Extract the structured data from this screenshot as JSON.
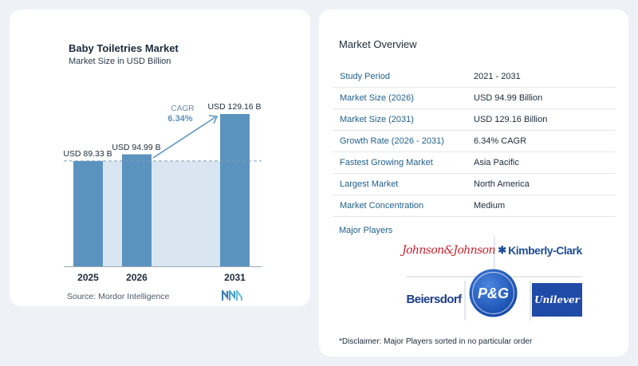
{
  "chart_data": {
    "type": "bar",
    "title": "Baby Toiletries Market",
    "subtitle": "Market Size in USD Billion",
    "categories": [
      "2025",
      "2026",
      "2031"
    ],
    "values": [
      89.33,
      94.99,
      129.16
    ],
    "value_labels": [
      "USD 89.33 B",
      "USD 94.99 B",
      "USD 129.16 B"
    ],
    "cagr_label": "CAGR",
    "cagr_value": "6.34%",
    "ylim": [
      0,
      129.16
    ],
    "colors": {
      "bar": "#5b93bf",
      "bar_light": "#d9e6f1",
      "dashed": "#7f9bb5",
      "cagr": "#5b93bf"
    }
  },
  "source": "Source:  Mordor Intelligence",
  "overview": {
    "title": "Market Overview",
    "rows": [
      {
        "label": "Study Period",
        "value": "2021 - 2031"
      },
      {
        "label": "Market Size (2026)",
        "value": "USD 94.99 Billion"
      },
      {
        "label": "Market Size (2031)",
        "value": "USD 129.16 Billion"
      },
      {
        "label": "Growth Rate (2026 - 2031)",
        "value": "6.34% CAGR"
      },
      {
        "label": "Fastest Growing Market",
        "value": "Asia Pacific"
      },
      {
        "label": "Largest Market",
        "value": "North America"
      },
      {
        "label": "Market Concentration",
        "value": "Medium"
      }
    ]
  },
  "players": {
    "title": "Major Players",
    "logos": [
      "Johnson&Johnson",
      "Kimberly-Clark",
      "Beiersdorf",
      "P&G",
      "Unilever"
    ]
  },
  "disclaimer": "*Disclaimer: Major Players sorted in no particular order"
}
